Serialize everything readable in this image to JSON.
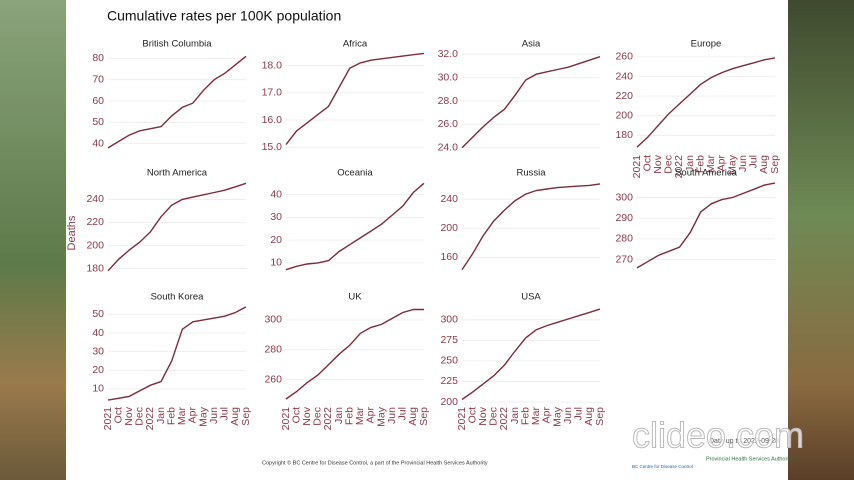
{
  "title": "Cumulative rates per 100K population",
  "y_label": "Deaths",
  "copyright": "Copyright © BC Centre for Disease Control, a part of the Provincial Health Services Authority",
  "data_note": "Data up to 2022-09-28",
  "watermark": "clideo.com",
  "logos": [
    "BC Centre for Disease Control",
    "Provincial Health Services Authority"
  ],
  "chart_data": [
    {
      "type": "line",
      "title": "British Columbia",
      "color": "#7b2d3b",
      "grid": true,
      "values": [
        38,
        41,
        44,
        46,
        47,
        48,
        53,
        57,
        59,
        65,
        70,
        73,
        77,
        81
      ],
      "ylim": [
        37,
        83
      ],
      "yticks": [
        40,
        50,
        60,
        70,
        80
      ]
    },
    {
      "type": "line",
      "title": "Africa",
      "color": "#7b2d3b",
      "grid": true,
      "values": [
        15.1,
        15.6,
        15.9,
        16.2,
        16.5,
        17.2,
        17.9,
        18.1,
        18.2,
        18.25,
        18.3,
        18.35,
        18.4,
        18.45
      ],
      "ylim": [
        14.9,
        18.5
      ],
      "yticks": [
        {
          "value": 15,
          "label": "15.0"
        },
        {
          "value": 16,
          "label": "16.0"
        },
        {
          "value": 17,
          "label": "17.0"
        },
        {
          "value": 18,
          "label": "18.0"
        }
      ]
    },
    {
      "type": "line",
      "title": "Asia",
      "color": "#7b2d3b",
      "grid": true,
      "values": [
        24,
        24.9,
        25.8,
        26.6,
        27.3,
        28.5,
        29.8,
        30.3,
        30.5,
        30.7,
        30.9,
        31.2,
        31.5,
        31.8
      ],
      "ylim": [
        23.8,
        32.2
      ],
      "yticks": [
        {
          "value": 24,
          "label": "24.0"
        },
        {
          "value": 26,
          "label": "26.0"
        },
        {
          "value": 28,
          "label": "28.0"
        },
        {
          "value": 30,
          "label": "30.0"
        },
        {
          "value": 32,
          "label": "32.0"
        }
      ]
    },
    {
      "type": "line",
      "title": "Europe",
      "color": "#7b2d3b",
      "grid": true,
      "categories": [
        "2021",
        "Oct",
        "Nov",
        "Dec",
        "2022",
        "Jan",
        "Feb",
        "Mar",
        "Apr",
        "May",
        "Jun",
        "Jul",
        "Aug",
        "Sep"
      ],
      "values": [
        168,
        178,
        190,
        202,
        212,
        222,
        232,
        239,
        244,
        248,
        251,
        254,
        257,
        259
      ],
      "ylim": [
        165,
        265
      ],
      "yticks": [
        180,
        200,
        220,
        240,
        260
      ]
    },
    {
      "type": "line",
      "title": "North America",
      "color": "#7b2d3b",
      "grid": true,
      "values": [
        178,
        188,
        196,
        203,
        212,
        225,
        235,
        240,
        242,
        244,
        246,
        248,
        251,
        254
      ],
      "ylim": [
        177,
        256
      ],
      "yticks": [
        180,
        200,
        220,
        240
      ]
    },
    {
      "type": "line",
      "title": "Oceania",
      "color": "#7b2d3b",
      "grid": true,
      "values": [
        7,
        8.5,
        9.5,
        10,
        11,
        15,
        18,
        21,
        24,
        27,
        31,
        35,
        41,
        45
      ],
      "ylim": [
        6,
        46
      ],
      "yticks": [
        10,
        20,
        30,
        40
      ]
    },
    {
      "type": "line",
      "title": "Russia",
      "color": "#7b2d3b",
      "grid": true,
      "values": [
        143,
        165,
        190,
        210,
        225,
        238,
        247,
        252,
        254,
        256,
        257,
        258,
        259,
        261
      ],
      "ylim": [
        140,
        265
      ],
      "yticks": [
        160,
        200,
        240
      ]
    },
    {
      "type": "line",
      "title": "South America",
      "color": "#7b2d3b",
      "grid": true,
      "values": [
        266,
        269,
        272,
        274,
        276,
        283,
        293,
        297,
        299,
        300,
        302,
        304,
        306,
        307
      ],
      "ylim": [
        264,
        308
      ],
      "yticks": [
        270,
        280,
        290,
        300
      ]
    },
    {
      "type": "line",
      "title": "South Korea",
      "color": "#7b2d3b",
      "grid": true,
      "categories": [
        "2021",
        "Oct",
        "Nov",
        "Dec",
        "2022",
        "Jan",
        "Feb",
        "Mar",
        "Apr",
        "May",
        "Jun",
        "Jul",
        "Aug",
        "Sep"
      ],
      "values": [
        4,
        5,
        6,
        9,
        12,
        14,
        25,
        42,
        46,
        47,
        48,
        49,
        51,
        54
      ],
      "ylim": [
        3,
        55
      ],
      "yticks": [
        10,
        20,
        30,
        40,
        50
      ]
    },
    {
      "type": "line",
      "title": "UK",
      "color": "#7b2d3b",
      "grid": true,
      "categories": [
        "2021",
        "Oct",
        "Nov",
        "Dec",
        "2022",
        "Jan",
        "Feb",
        "Mar",
        "Apr",
        "May",
        "Jun",
        "Jul",
        "Aug",
        "Sep"
      ],
      "values": [
        247,
        252,
        258,
        263,
        270,
        277,
        283,
        291,
        295,
        297,
        301,
        305,
        307,
        307
      ],
      "ylim": [
        245,
        310
      ],
      "yticks": [
        260,
        280,
        300
      ]
    },
    {
      "type": "line",
      "title": "USA",
      "color": "#7b2d3b",
      "grid": true,
      "categories": [
        "2021",
        "Oct",
        "Nov",
        "Dec",
        "2022",
        "Jan",
        "Feb",
        "Mar",
        "Apr",
        "May",
        "Jun",
        "Jul",
        "Aug",
        "Sep"
      ],
      "values": [
        203,
        212,
        222,
        232,
        245,
        262,
        278,
        288,
        293,
        297,
        301,
        305,
        309,
        313
      ],
      "ylim": [
        200,
        318
      ],
      "yticks": [
        200,
        225,
        250,
        275,
        300
      ]
    }
  ]
}
